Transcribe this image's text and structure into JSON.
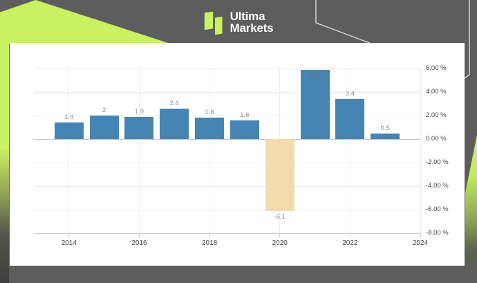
{
  "header": {
    "brand": {
      "line1": "Ultima",
      "line2": "Markets"
    }
  },
  "colors": {
    "background": "#5d5d5d",
    "accent_lime": "#c9f161",
    "card": "#ffffff",
    "bar_positive": "#4684b4",
    "bar_negative": "#f2dcae",
    "grid": "#e9e9e9",
    "zero_line": "#c4c4c4",
    "axis_text": "#434343",
    "bar_label": "#8e8e8e",
    "bar_label_inside": "#5e748a",
    "outline_decor": "#d4d4d4"
  },
  "chart_data": {
    "type": "bar",
    "title": "",
    "categories": [
      2014,
      2015,
      2016,
      2017,
      2018,
      2019,
      2020,
      2021,
      2022,
      2023
    ],
    "values": [
      1.4,
      2,
      1.9,
      2.6,
      1.8,
      1.6,
      -6.1,
      5.9,
      3.4,
      0.5
    ],
    "bar_labels": [
      "1.4",
      "2",
      "1.9",
      "2.6",
      "1.8",
      "1.6",
      "-6.1",
      "5.9",
      "3.4",
      "0.5"
    ],
    "bar_colors_rule": "positive bars steel blue, negative bars wheat",
    "x_axis": {
      "range": [
        2013,
        2024
      ],
      "ticks": [
        {
          "value": 2014,
          "label": "2014"
        },
        {
          "value": 2016,
          "label": "2016"
        },
        {
          "value": 2018,
          "label": "2018"
        },
        {
          "value": 2020,
          "label": "2020"
        },
        {
          "value": 2022,
          "label": "2022"
        },
        {
          "value": 2024,
          "label": "2024"
        }
      ]
    },
    "y_axis": {
      "range": [
        -8,
        6
      ],
      "unit": "%",
      "labels_position": "right",
      "ticks": [
        {
          "value": 6,
          "label": "6.00 %"
        },
        {
          "value": 4,
          "label": "4.00 %"
        },
        {
          "value": 2,
          "label": "2.00 %"
        },
        {
          "value": 0,
          "label": "0.00 %"
        },
        {
          "value": -2,
          "label": "-2.00 %"
        },
        {
          "value": -4,
          "label": "-4.00 %"
        },
        {
          "value": -6,
          "label": "-6.00 %"
        },
        {
          "value": -8,
          "label": "-8.00 %"
        }
      ]
    },
    "grid": true,
    "legend": false
  }
}
